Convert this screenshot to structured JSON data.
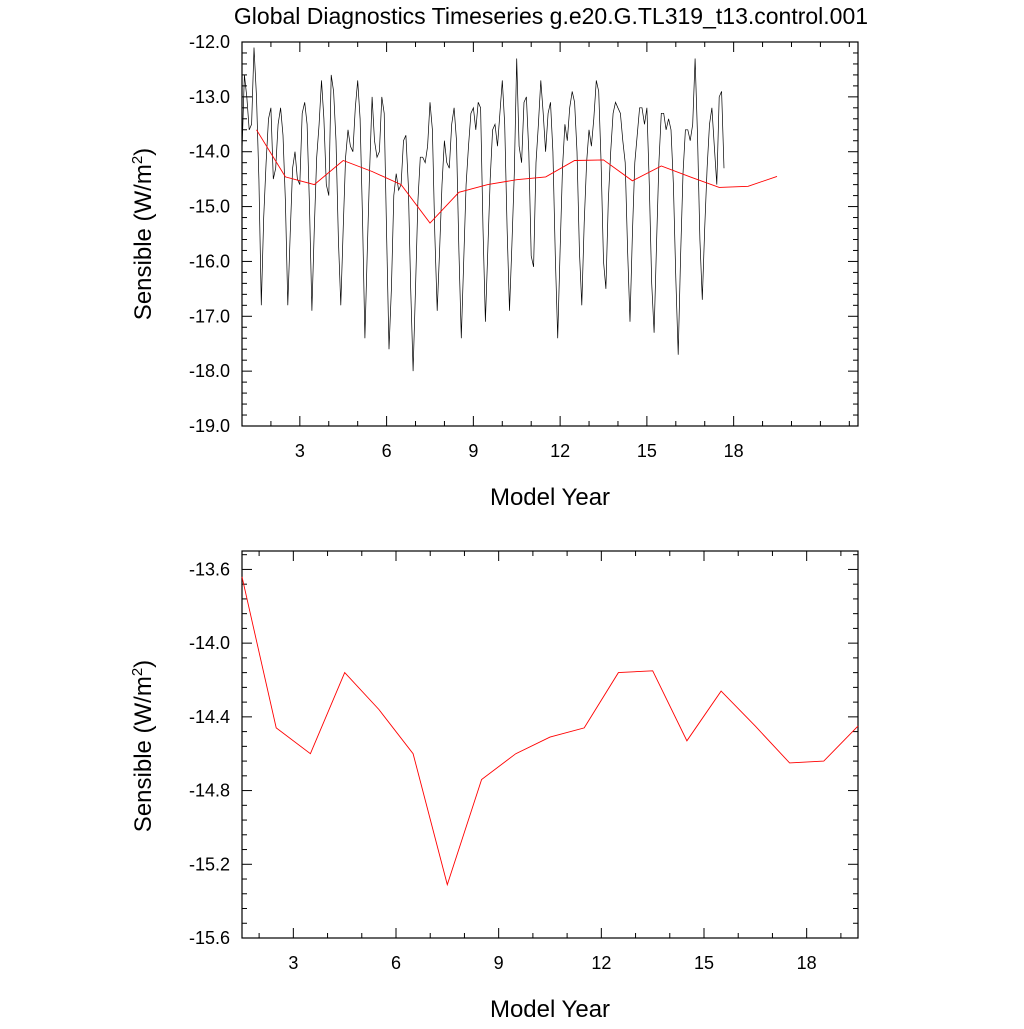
{
  "title": "Global Diagnostics Timeseries g.e20.G.TL319_t13.control.001",
  "colors": {
    "monthly": "#000000",
    "annual": "#ff0000"
  },
  "chart_data": [
    {
      "type": "line",
      "title": "Global Diagnostics Timeseries g.e20.G.TL319_t13.control.001",
      "xlabel": "Model Year",
      "ylabel_main": "Sensible (W/m",
      "ylabel_sup": "2",
      "ylabel_close": ")",
      "xlim": [
        1,
        22.3
      ],
      "ylim": [
        -19.0,
        -12.0
      ],
      "xticks": [
        "3",
        "6",
        "9",
        "12",
        "15",
        "18"
      ],
      "yticks": [
        "-12.0",
        "-13.0",
        "-14.0",
        "-15.0",
        "-16.0",
        "-17.0",
        "-18.0",
        "-19.0"
      ],
      "series": [
        {
          "kind": "monthly",
          "x_start": 1.0,
          "x_step": 0.08333,
          "values": [
            -14.0,
            -12.6,
            -13.0,
            -13.6,
            -13.5,
            -12.1,
            -13.0,
            -14.5,
            -16.8,
            -15.2,
            -14.2,
            -13.4,
            -13.2,
            -14.5,
            -14.3,
            -13.5,
            -13.2,
            -13.7,
            -14.9,
            -16.8,
            -15.5,
            -14.3,
            -14.0,
            -14.5,
            -14.6,
            -13.3,
            -13.1,
            -13.5,
            -15.0,
            -16.9,
            -15.4,
            -14.1,
            -13.5,
            -12.7,
            -13.4,
            -14.6,
            -14.8,
            -12.6,
            -12.9,
            -13.8,
            -15.6,
            -16.8,
            -15.4,
            -14.1,
            -13.6,
            -13.9,
            -14.0,
            -13.2,
            -12.7,
            -13.4,
            -15.2,
            -17.4,
            -15.8,
            -14.3,
            -13.0,
            -13.8,
            -14.1,
            -14.0,
            -13.0,
            -13.3,
            -15.5,
            -17.6,
            -16.5,
            -14.8,
            -14.4,
            -14.7,
            -14.6,
            -13.8,
            -13.7,
            -14.6,
            -16.5,
            -18.0,
            -16.5,
            -14.9,
            -14.1,
            -14.1,
            -14.2,
            -13.9,
            -13.1,
            -13.6,
            -15.5,
            -16.9,
            -15.8,
            -14.6,
            -13.8,
            -14.2,
            -14.3,
            -13.5,
            -13.2,
            -13.8,
            -15.8,
            -17.4,
            -16.0,
            -14.6,
            -13.9,
            -13.3,
            -13.2,
            -13.6,
            -13.1,
            -13.2,
            -15.4,
            -17.1,
            -15.8,
            -14.5,
            -13.6,
            -13.5,
            -13.9,
            -13.3,
            -12.7,
            -13.5,
            -15.4,
            -16.9,
            -15.7,
            -14.4,
            -12.3,
            -13.9,
            -14.2,
            -13.1,
            -13.0,
            -14.0,
            -15.9,
            -16.1,
            -14.2,
            -13.5,
            -12.7,
            -13.3,
            -14.0,
            -13.3,
            -13.1,
            -14.0,
            -15.9,
            -17.4,
            -15.8,
            -14.3,
            -13.5,
            -13.8,
            -13.2,
            -12.9,
            -13.1,
            -14.0,
            -15.8,
            -16.8,
            -15.3,
            -14.2,
            -13.6,
            -13.9,
            -13.4,
            -12.7,
            -12.9,
            -14.2,
            -16.0,
            -16.5,
            -14.9,
            -14.0,
            -13.3,
            -13.1,
            -13.2,
            -13.3,
            -13.8,
            -14.2,
            -15.8,
            -17.1,
            -15.5,
            -14.2,
            -13.7,
            -13.2,
            -13.2,
            -13.5,
            -13.2,
            -14.6,
            -16.4,
            -17.3,
            -15.7,
            -14.2,
            -13.3,
            -13.3,
            -13.6,
            -13.4,
            -13.6,
            -14.6,
            -16.3,
            -17.7,
            -15.9,
            -14.4,
            -13.6,
            -13.6,
            -13.8,
            -13.5,
            -12.3,
            -13.7,
            -15.6,
            -16.7,
            -15.4,
            -14.3,
            -13.5,
            -13.2,
            -13.9,
            -14.6,
            -13.0,
            -12.9,
            -14.3
          ]
        },
        {
          "kind": "annual",
          "x": [
            1.5,
            2.5,
            3.5,
            4.5,
            5.5,
            6.5,
            7.5,
            8.5,
            9.5,
            10.5,
            11.5,
            12.5,
            13.5,
            14.5,
            15.5,
            16.5,
            17.5,
            18.5,
            19.5
          ],
          "values": [
            -13.6,
            -14.46,
            -14.6,
            -14.16,
            -14.36,
            -14.6,
            -15.3,
            -14.74,
            -14.6,
            -14.51,
            -14.46,
            -14.16,
            -14.15,
            -14.53,
            -14.26,
            -14.46,
            -14.65,
            -14.63,
            -14.45
          ]
        }
      ]
    },
    {
      "type": "line",
      "title": "",
      "xlabel": "Model Year",
      "ylabel_main": "Sensible (W/m",
      "ylabel_sup": "2",
      "ylabel_close": ")",
      "xlim": [
        1.5,
        19.5
      ],
      "ylim": [
        -15.6,
        -13.5
      ],
      "xticks": [
        "3",
        "6",
        "9",
        "12",
        "15",
        "18"
      ],
      "yticks": [
        "-13.6",
        "-14.0",
        "-14.4",
        "-14.8",
        "-15.2",
        "-15.6"
      ],
      "series": [
        {
          "kind": "annual",
          "x": [
            1.5,
            2.5,
            3.5,
            4.5,
            5.5,
            6.5,
            7.5,
            8.5,
            9.5,
            10.5,
            11.5,
            12.5,
            13.5,
            14.5,
            15.5,
            16.5,
            17.5,
            18.5,
            19.5
          ],
          "values": [
            -13.64,
            -14.46,
            -14.6,
            -14.16,
            -14.36,
            -14.6,
            -15.31,
            -14.74,
            -14.6,
            -14.51,
            -14.46,
            -14.16,
            -14.15,
            -14.53,
            -14.26,
            -14.45,
            -14.65,
            -14.64,
            -14.45
          ]
        }
      ]
    }
  ]
}
